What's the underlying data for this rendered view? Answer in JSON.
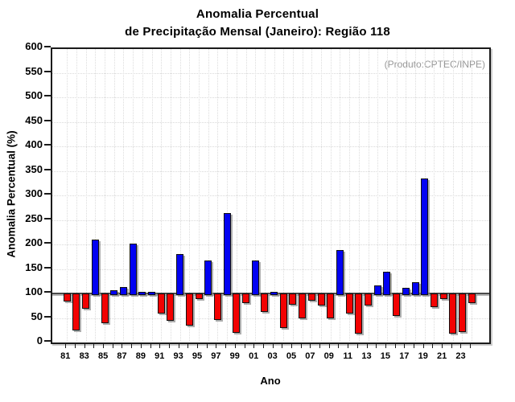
{
  "title": {
    "line1": "Anomalia Percentual",
    "line2": "de Precipitação Mensal (Janeiro): Região 118"
  },
  "annotation": "(Produto:CPTEC/INPE)",
  "chart_data": {
    "type": "bar",
    "title": "Anomalia Percentual de Precipitação Mensal (Janeiro): Região 118",
    "xlabel": "Ano",
    "ylabel": "Anomalia Percentual (%)",
    "ylim": [
      0,
      600
    ],
    "ytick_step": 50,
    "baseline": 100,
    "grid": "dotted, vertical every year and horizontal every 50",
    "legend_position": "none",
    "colors": {
      "above_baseline": "#0202f2",
      "below_baseline": "#f20202",
      "bar_outline": "#101010",
      "annotation_gray": "#999999"
    },
    "y_tick_labels": [
      "0",
      "50",
      "100",
      "150",
      "200",
      "250",
      "300",
      "350",
      "400",
      "450",
      "500",
      "550",
      "600"
    ],
    "x_tick_labels": [
      "81",
      "83",
      "85",
      "87",
      "89",
      "91",
      "93",
      "95",
      "97",
      "99",
      "01",
      "03",
      "05",
      "07",
      "09",
      "11",
      "13",
      "15",
      "17",
      "19",
      "21",
      "23"
    ],
    "years": [
      1981,
      1982,
      1983,
      1984,
      1985,
      1986,
      1987,
      1988,
      1989,
      1990,
      1991,
      1992,
      1993,
      1994,
      1995,
      1996,
      1997,
      1998,
      1999,
      2000,
      2001,
      2002,
      2003,
      2004,
      2005,
      2006,
      2007,
      2008,
      2009,
      2010,
      2011,
      2012,
      2013,
      2014,
      2015,
      2016,
      2017,
      2018,
      2019,
      2020,
      2021,
      2022,
      2023,
      2024
    ],
    "values": [
      87,
      28,
      72,
      210,
      43,
      107,
      113,
      201,
      104,
      100,
      63,
      48,
      180,
      37,
      92,
      168,
      50,
      264,
      23,
      83,
      167,
      66,
      102,
      33,
      81,
      53,
      89,
      78,
      52,
      188,
      63,
      22,
      78,
      116,
      144,
      58,
      112,
      123,
      334,
      76,
      92,
      21,
      25,
      84
    ]
  }
}
